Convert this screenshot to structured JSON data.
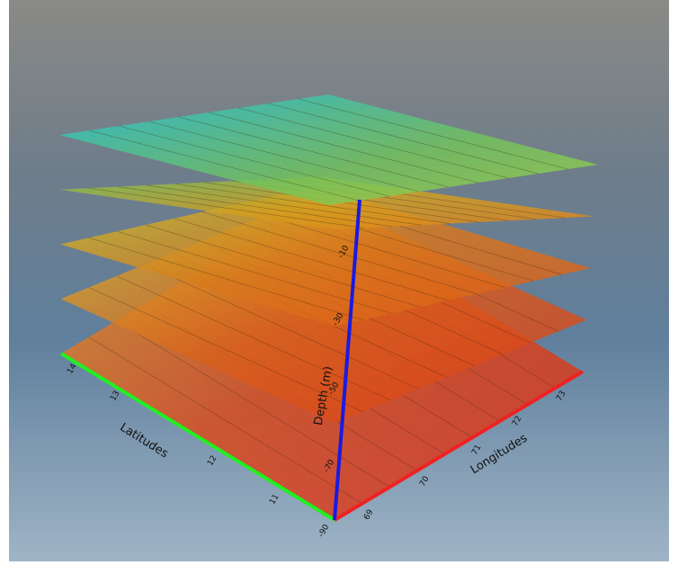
{
  "scene": {
    "axes": {
      "depth": {
        "title": "Depth (m)",
        "ticks": [
          "-10",
          "-30",
          "-50",
          "-70",
          "-90"
        ]
      },
      "latitude": {
        "title": "Latitudes",
        "ticks": [
          "14",
          "13",
          "12",
          "11"
        ]
      },
      "longitude": {
        "title": "Longitudes",
        "ticks": [
          "69",
          "70",
          "71",
          "72",
          "73"
        ]
      }
    }
  }
}
